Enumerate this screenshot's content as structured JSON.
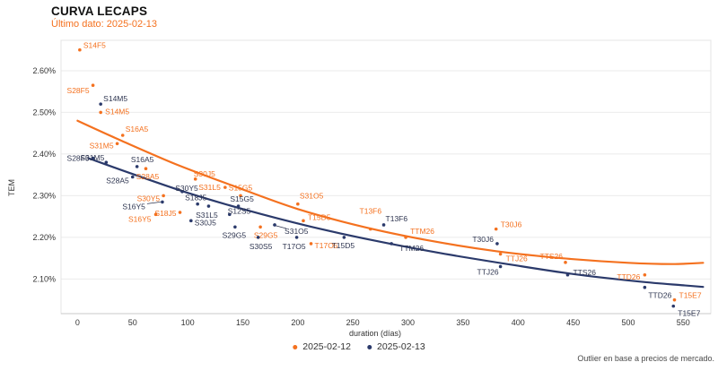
{
  "header": {
    "title": "CURVA LECAPS",
    "subtitle": "Último dato: 2025-02-13"
  },
  "caption": "Outlier en base a precios de mercado.",
  "colors": {
    "orange": "#F4711F",
    "navy": "#2B3A6B",
    "navy_label": "#2E3550",
    "grid": "#EBEBEB",
    "plot_border": "#E4E4E4",
    "axis_line": "#C9C9C9",
    "tick_text": "#333333"
  },
  "legend": [
    {
      "label": "2025-02-12",
      "color": "#F4711F"
    },
    {
      "label": "2025-02-13",
      "color": "#2B3A6B"
    }
  ],
  "chart_data": {
    "type": "scatter",
    "title": "CURVA LECAPS",
    "subtitle": "Último dato: 2025-02-13",
    "xlabel": "duration (días)",
    "ylabel": "TEM",
    "xlim": [
      -15,
      575
    ],
    "ylim": [
      2.017,
      2.673
    ],
    "x_ticks": [
      0,
      50,
      100,
      150,
      200,
      250,
      300,
      350,
      400,
      450,
      500,
      550
    ],
    "y_ticks": [
      {
        "value": 2.6,
        "label": "2.60%"
      },
      {
        "value": 2.5,
        "label": "2.50%"
      },
      {
        "value": 2.4,
        "label": "2.40%"
      },
      {
        "value": 2.3,
        "label": "2.30%"
      },
      {
        "value": 2.2,
        "label": "2.20%"
      },
      {
        "value": 2.1,
        "label": "2.10%"
      }
    ],
    "grid": "horizontal",
    "legend_position": "bottom-center",
    "series": [
      {
        "name": "2025-02-12",
        "color": "#F4711F",
        "label_color": "#F4711F",
        "trend": [
          [
            0,
            2.48
          ],
          [
            40,
            2.432
          ],
          [
            90,
            2.375
          ],
          [
            140,
            2.325
          ],
          [
            200,
            2.268
          ],
          [
            260,
            2.225
          ],
          [
            320,
            2.192
          ],
          [
            380,
            2.167
          ],
          [
            440,
            2.15
          ],
          [
            500,
            2.139
          ],
          [
            540,
            2.136
          ],
          [
            568,
            2.139
          ]
        ],
        "points": [
          {
            "t": "S14F5",
            "x": 2,
            "y": 2.65,
            "dx": 4,
            "dy": -5,
            "a": "start"
          },
          {
            "t": "S28F5",
            "x": 14,
            "y": 2.565,
            "dx": -4,
            "dy": 6,
            "a": "end"
          },
          {
            "t": "S14M5",
            "x": 21,
            "y": 2.5,
            "dx": 5,
            "dy": -1,
            "a": "start"
          },
          {
            "t": "S31M5",
            "x": 36,
            "y": 2.425,
            "dx": -4,
            "dy": 2,
            "a": "end"
          },
          {
            "t": "S16A5",
            "x": 41,
            "y": 2.445,
            "dx": 3,
            "dy": -7,
            "a": "start"
          },
          {
            "t": "S28A5",
            "x": 62,
            "y": 2.365,
            "dx": 2,
            "dy": 9,
            "a": "middle"
          },
          {
            "t": "S30Y5",
            "x": 78,
            "y": 2.3,
            "dx": -4,
            "dy": 3,
            "a": "end"
          },
          {
            "t": "S16Y5",
            "x": 71,
            "y": 2.255,
            "dx": -5,
            "dy": 5,
            "a": "end"
          },
          {
            "t": "S18J5",
            "x": 93,
            "y": 2.26,
            "dx": -4,
            "dy": 1,
            "a": "end"
          },
          {
            "t": "S30J5",
            "x": 107,
            "y": 2.34,
            "dx": -2,
            "dy": -6,
            "a": "start"
          },
          {
            "t": "S31L5",
            "x": 134,
            "y": 2.32,
            "dx": -5,
            "dy": 0,
            "a": "end"
          },
          {
            "t": "S15G5",
            "x": 148,
            "y": 2.3,
            "dx": 0,
            "dy": -9,
            "a": "middle"
          },
          {
            "t": "S29G5",
            "x": 166,
            "y": 2.225,
            "dx": 6,
            "dy": 9,
            "a": "middle"
          },
          {
            "t": "S31O5",
            "x": 200,
            "y": 2.28,
            "dx": 2,
            "dy": -9,
            "a": "start"
          },
          {
            "t": "T15D5",
            "x": 205,
            "y": 2.24,
            "dx": 5,
            "dy": -4,
            "a": "start"
          },
          {
            "t": "T17O5",
            "x": 212,
            "y": 2.185,
            "dx": 4,
            "dy": 2,
            "a": "start"
          },
          {
            "t": "T13F6",
            "x": 266,
            "y": 2.22,
            "dx": 0,
            "dy": -20,
            "a": "middle"
          },
          {
            "t": "TTM26",
            "x": 298,
            "y": 2.2,
            "dx": 5,
            "dy": -7,
            "a": "start"
          },
          {
            "t": "T30J6",
            "x": 380,
            "y": 2.22,
            "dx": 5,
            "dy": -5,
            "a": "start"
          },
          {
            "t": "TTJ26",
            "x": 384,
            "y": 2.16,
            "dx": 6,
            "dy": 5,
            "a": "start"
          },
          {
            "t": "TTS26",
            "x": 443,
            "y": 2.14,
            "dx": -3,
            "dy": -7,
            "a": "end"
          },
          {
            "t": "TTD26",
            "x": 515,
            "y": 2.11,
            "dx": -5,
            "dy": 2,
            "a": "end"
          },
          {
            "t": "T15E7",
            "x": 542,
            "y": 2.05,
            "dx": 5,
            "dy": -5,
            "a": "start"
          }
        ]
      },
      {
        "name": "2025-02-13",
        "color": "#2B3A6B",
        "label_color": "#2E3550",
        "trend": [
          [
            10,
            2.39
          ],
          [
            50,
            2.352
          ],
          [
            100,
            2.307
          ],
          [
            150,
            2.268
          ],
          [
            210,
            2.227
          ],
          [
            270,
            2.192
          ],
          [
            330,
            2.162
          ],
          [
            390,
            2.136
          ],
          [
            450,
            2.112
          ],
          [
            510,
            2.094
          ],
          [
            550,
            2.085
          ],
          [
            568,
            2.081
          ]
        ],
        "points": [
          {
            "t": "S28F5",
            "x": 14,
            "y": 2.39,
            "dx": -4,
            "dy": 0,
            "a": "end"
          },
          {
            "t": "S14M5",
            "x": 21,
            "y": 2.52,
            "dx": 3,
            "dy": -6,
            "a": "start"
          },
          {
            "t": "S31M5",
            "x": 26,
            "y": 2.38,
            "dx": -2,
            "dy": -5,
            "a": "end"
          },
          {
            "t": "S16A5",
            "x": 54,
            "y": 2.37,
            "dx": 6,
            "dy": -8,
            "a": "middle"
          },
          {
            "t": "S28A5",
            "x": 50,
            "y": 2.345,
            "dx": -4,
            "dy": 4,
            "a": "end"
          },
          {
            "t": "S30Y5",
            "x": 95,
            "y": 2.31,
            "dx": 5,
            "dy": -4,
            "a": "middle"
          },
          {
            "t": "S16Y5",
            "x": 77,
            "y": 2.285,
            "dx": -19,
            "dy": 5,
            "a": "end",
            "leader": true
          },
          {
            "t": "S18J5",
            "x": 109,
            "y": 2.28,
            "dx": -2,
            "dy": -7,
            "a": "middle"
          },
          {
            "t": "S31L5",
            "x": 119,
            "y": 2.275,
            "dx": -2,
            "dy": 10,
            "a": "middle"
          },
          {
            "t": "S30J5",
            "x": 103,
            "y": 2.24,
            "dx": 4,
            "dy": 2,
            "a": "start"
          },
          {
            "t": "S12S5",
            "x": 138,
            "y": 2.255,
            "dx": -2,
            "dy": -4,
            "a": "start"
          },
          {
            "t": "S15G5",
            "x": 146,
            "y": 2.275,
            "dx": 4,
            "dy": -8,
            "a": "middle"
          },
          {
            "t": "S29G5",
            "x": 143,
            "y": 2.225,
            "dx": -1,
            "dy": 9,
            "a": "middle"
          },
          {
            "t": "S30S5",
            "x": 164,
            "y": 2.2,
            "dx": 3,
            "dy": 10,
            "a": "middle"
          },
          {
            "t": "S31O5",
            "x": 179,
            "y": 2.23,
            "dx": 11,
            "dy": 7,
            "a": "start",
            "leader": true
          },
          {
            "t": "T17O5",
            "x": 199,
            "y": 2.2,
            "dx": -3,
            "dy": 10,
            "a": "middle"
          },
          {
            "t": "T15D5",
            "x": 242,
            "y": 2.2,
            "dx": -1,
            "dy": 9,
            "a": "middle"
          },
          {
            "t": "T13F6",
            "x": 278,
            "y": 2.23,
            "dx": 2,
            "dy": -7,
            "a": "start"
          },
          {
            "t": "TTM26",
            "x": 285,
            "y": 2.185,
            "dx": 9,
            "dy": 5,
            "a": "start"
          },
          {
            "t": "T30J6",
            "x": 381,
            "y": 2.185,
            "dx": -4,
            "dy": -5,
            "a": "end"
          },
          {
            "t": "TTJ26",
            "x": 384,
            "y": 2.13,
            "dx": -2,
            "dy": 6,
            "a": "end"
          },
          {
            "t": "TTS26",
            "x": 445,
            "y": 2.11,
            "dx": 6,
            "dy": -3,
            "a": "start"
          },
          {
            "t": "TTD26",
            "x": 515,
            "y": 2.08,
            "dx": 4,
            "dy": 9,
            "a": "start"
          },
          {
            "t": "T15E7",
            "x": 541,
            "y": 2.035,
            "dx": 5,
            "dy": 8,
            "a": "start"
          }
        ]
      }
    ]
  }
}
